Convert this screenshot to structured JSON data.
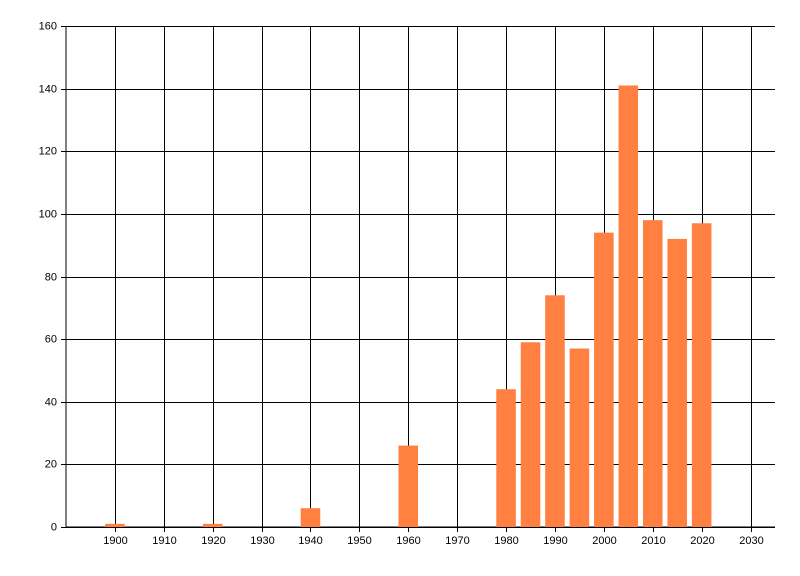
{
  "chart_data": {
    "type": "bar",
    "x": [
      1900,
      1920,
      1940,
      1960,
      1980,
      1985,
      1990,
      1995,
      2000,
      2005,
      2010,
      2015,
      2020
    ],
    "values": [
      1,
      1,
      6,
      26,
      44,
      59,
      74,
      57,
      94,
      141,
      98,
      92,
      97
    ],
    "color": "#ff8040",
    "xlim": [
      1890,
      2035
    ],
    "xticks": [
      1900,
      1910,
      1920,
      1930,
      1940,
      1950,
      1960,
      1970,
      1980,
      1990,
      2000,
      2010,
      2020,
      2030
    ],
    "ylim": [
      0,
      160
    ],
    "yticks": [
      0,
      20,
      40,
      60,
      80,
      100,
      120,
      140,
      160
    ],
    "grid": true
  }
}
